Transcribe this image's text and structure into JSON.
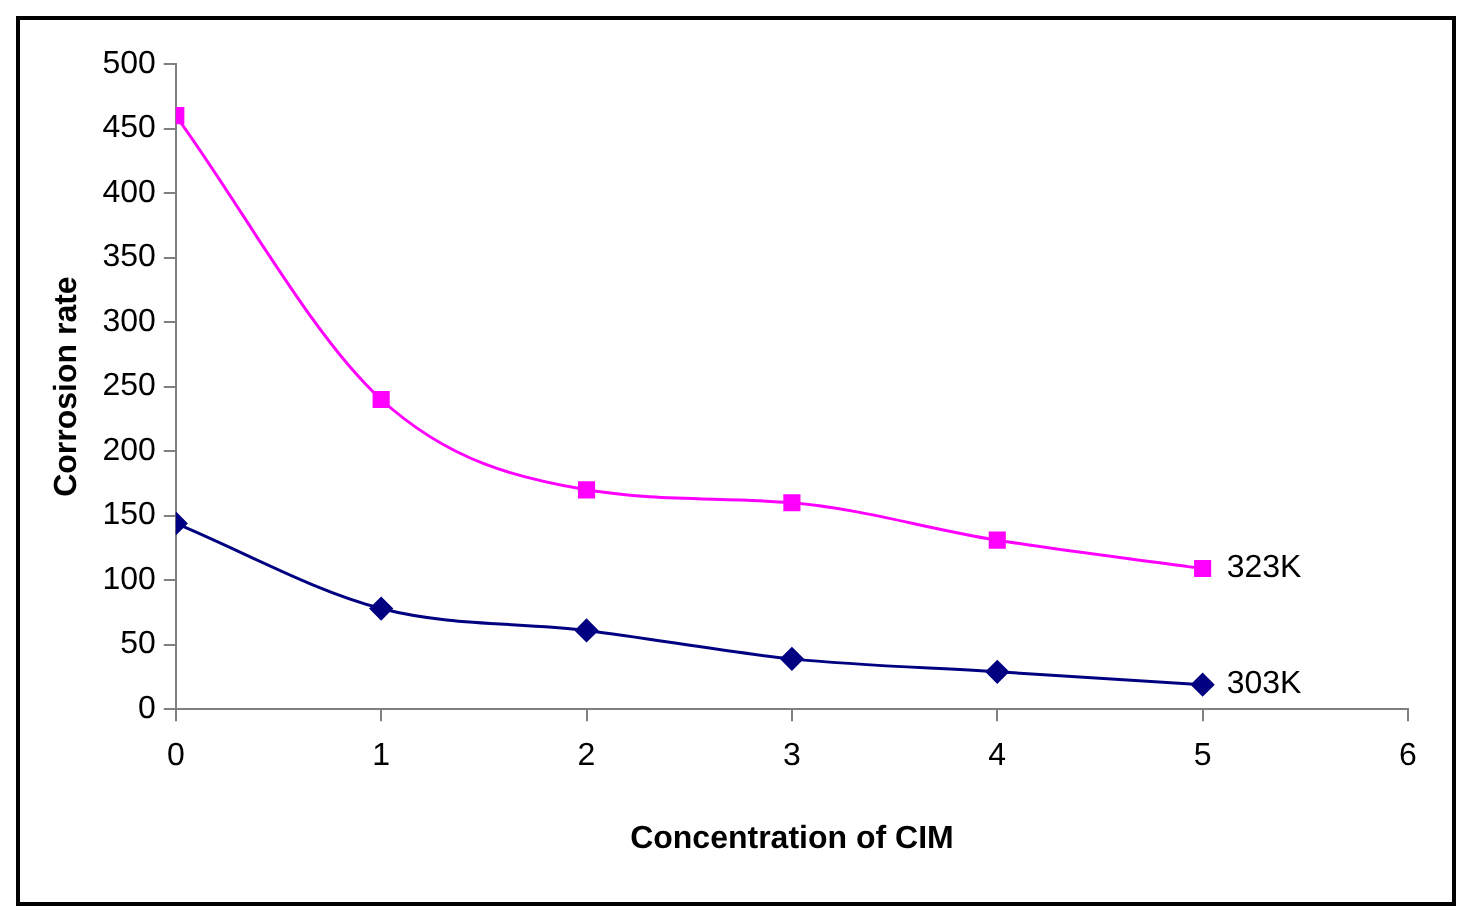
{
  "chart_data": {
    "type": "line",
    "xlabel": "Concentration of CIM",
    "ylabel": "Corrosion rate",
    "x": [
      0,
      1,
      2,
      3,
      4,
      5
    ],
    "xlim": [
      0,
      6
    ],
    "xticks": [
      0,
      1,
      2,
      3,
      4,
      5,
      6
    ],
    "ylim": [
      0,
      500
    ],
    "yticks": [
      0,
      50,
      100,
      150,
      200,
      250,
      300,
      350,
      400,
      450,
      500
    ],
    "grid": false,
    "legend": false,
    "series": [
      {
        "name": "303K",
        "color": "#000080",
        "marker": "diamond",
        "values": [
          144,
          78,
          61,
          39,
          29,
          19
        ]
      },
      {
        "name": "323K",
        "color": "#ff00ff",
        "marker": "square",
        "values": [
          460,
          240,
          170,
          160,
          131,
          109
        ]
      }
    ]
  }
}
